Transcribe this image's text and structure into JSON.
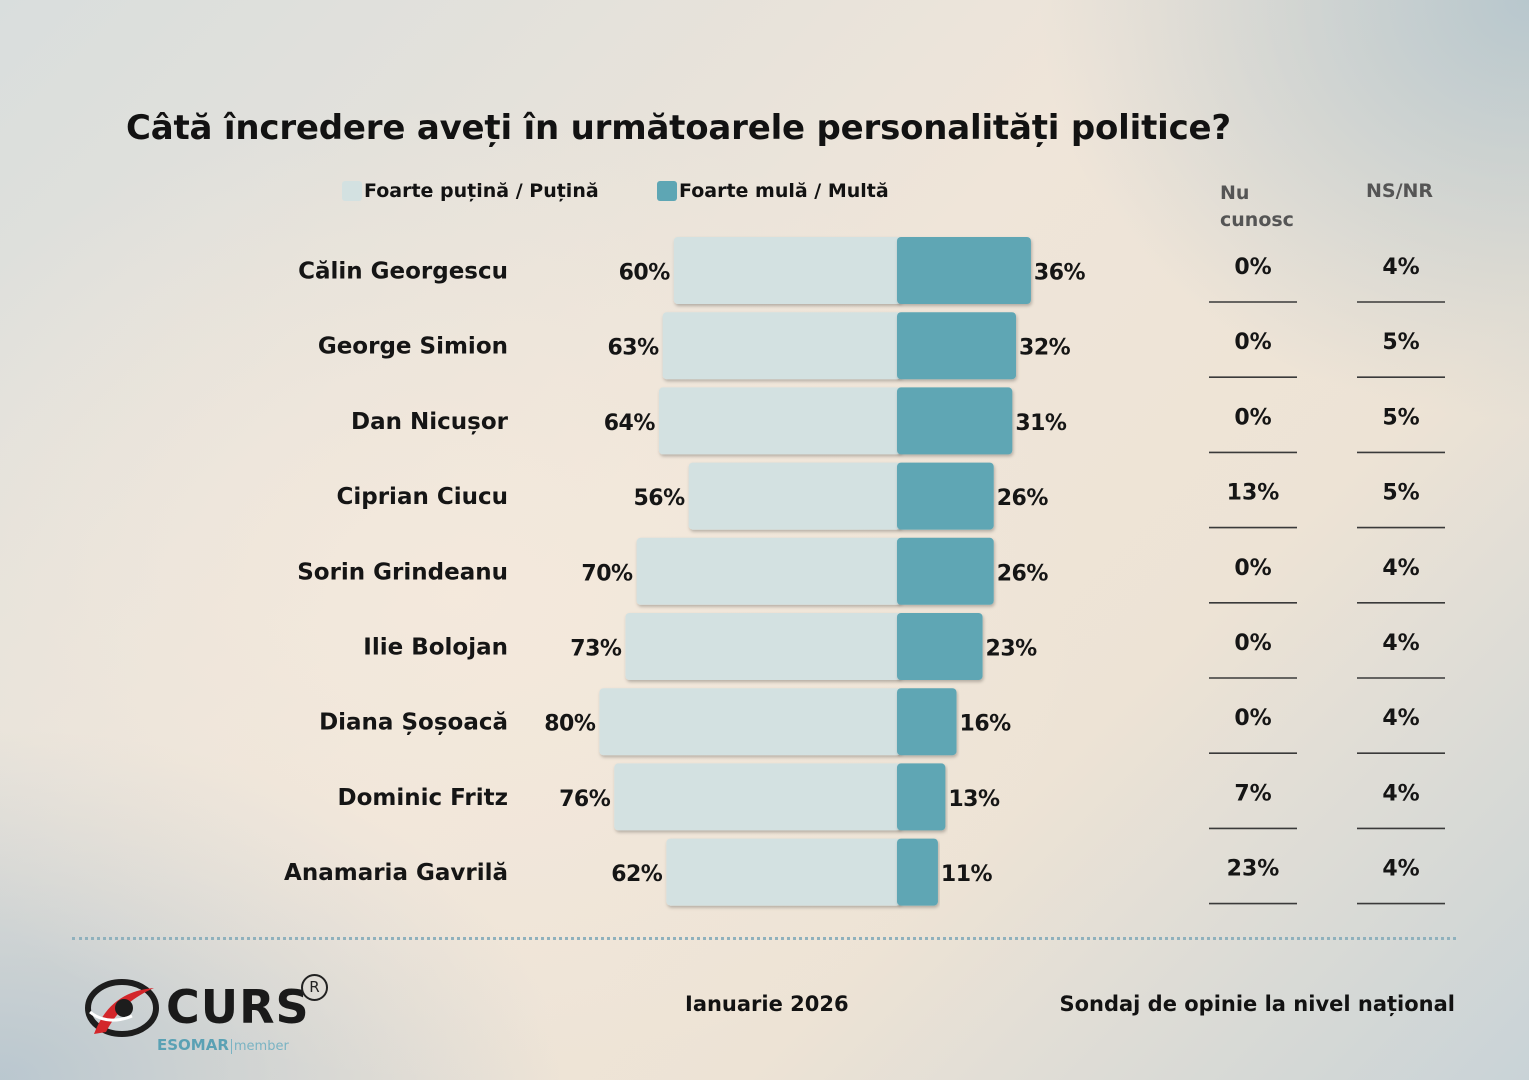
{
  "header": {
    "title": "Câtă încredere aveți în următoarele personalități politice?"
  },
  "legend": {
    "low_label": "Foarte puțină / Puțină",
    "high_label": "Foarte mulă / Multă"
  },
  "columns": {
    "nu_cunosc": "Nu cunosc",
    "ns_nr": "NS/NR"
  },
  "colors": {
    "low_bar": "#d3e1e1",
    "high_bar": "#5ea6b4",
    "text": "#151515",
    "divider": "#8fb1bd"
  },
  "chart_data": {
    "type": "bar",
    "orientation": "horizontal-diverging",
    "title": "Câtă încredere aveți în următoarele personalități politice?",
    "categories": [
      "Călin Georgescu",
      "George Simion",
      "Dan Nicușor",
      "Ciprian Ciucu",
      "Sorin Grindeanu",
      "Ilie Bolojan",
      "Diana Șoșoacă",
      "Dominic Fritz",
      "Anamaria Gavrilă"
    ],
    "series": [
      {
        "name": "Foarte puțină / Puțină",
        "values": [
          60,
          63,
          64,
          56,
          70,
          73,
          80,
          76,
          62
        ],
        "labels": [
          "60%",
          "63%",
          "64%",
          "56%",
          "70%",
          "73%",
          "80%",
          "76%",
          "62%"
        ]
      },
      {
        "name": "Foarte mulă / Multă",
        "values": [
          36,
          32,
          31,
          26,
          26,
          23,
          16,
          13,
          11
        ],
        "labels": [
          "36%",
          "32%",
          "31%",
          "26%",
          "26%",
          "23%",
          "16%",
          "13%",
          "11%"
        ]
      }
    ],
    "table_columns": [
      {
        "name": "Nu cunosc",
        "values": [
          "0%",
          "0%",
          "0%",
          "13%",
          "0%",
          "0%",
          "0%",
          "7%",
          "23%"
        ]
      },
      {
        "name": "NS/NR",
        "values": [
          "4%",
          "5%",
          "5%",
          "5%",
          "4%",
          "4%",
          "4%",
          "4%",
          "4%"
        ]
      }
    ],
    "unit": "%",
    "legend_position": "top"
  },
  "footer": {
    "logo_text": "CURS",
    "logo_reg": "R",
    "esomar": "ESOMAR",
    "esomar_member": "member",
    "date": "Ianuarie 2026",
    "survey": "Sondaj de opinie la nivel național"
  }
}
